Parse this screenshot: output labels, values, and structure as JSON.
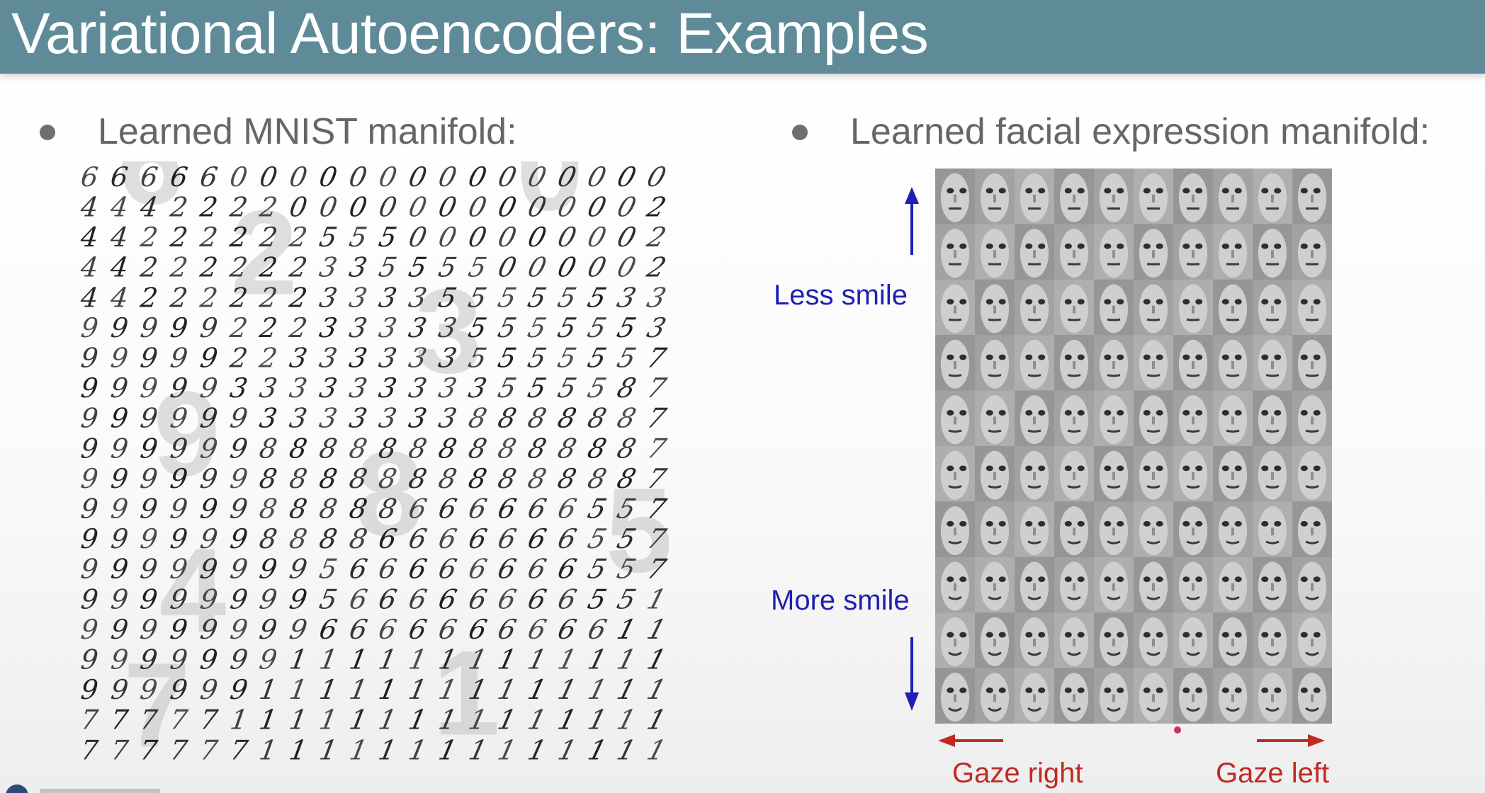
{
  "slide": {
    "title": "Variational Autoencoders: Examples"
  },
  "left_panel": {
    "bullet_text": "Learned MNIST manifold:",
    "digit_grid_rows": [
      "66666000000000000000",
      "44422220000000000002",
      "44222222555000000002",
      "44222222335555000002",
      "44222222333355555533",
      "99999222333335555553",
      "99999223333335555557",
      "99999333333333555587",
      "99999933333338888887",
      "99999988888888888887",
      "99999988888888888887",
      "99999988888666666557",
      "99999988886666666557",
      "99999999566666666557",
      "99999999566666666551",
      "99999999666666666611",
      "99999991111111111111",
      "99999911111111111111",
      "77777111111111111111",
      "77777711111111111111"
    ],
    "overlay_digits": [
      "6",
      "2",
      "0",
      "3",
      "9",
      "8",
      "5",
      "4",
      "7",
      "1"
    ]
  },
  "right_panel": {
    "bullet_text": "Learned facial expression manifold:",
    "less_smile_label": "Less smile",
    "more_smile_label": "More smile",
    "gaze_right_label": "Gaze right",
    "gaze_left_label": "Gaze left",
    "face_grid": {
      "rows": 10,
      "cols": 10
    },
    "colors": {
      "label_blue": "#1f1fb4",
      "label_red": "#c02a23",
      "header_teal": "#5e8b97"
    }
  }
}
